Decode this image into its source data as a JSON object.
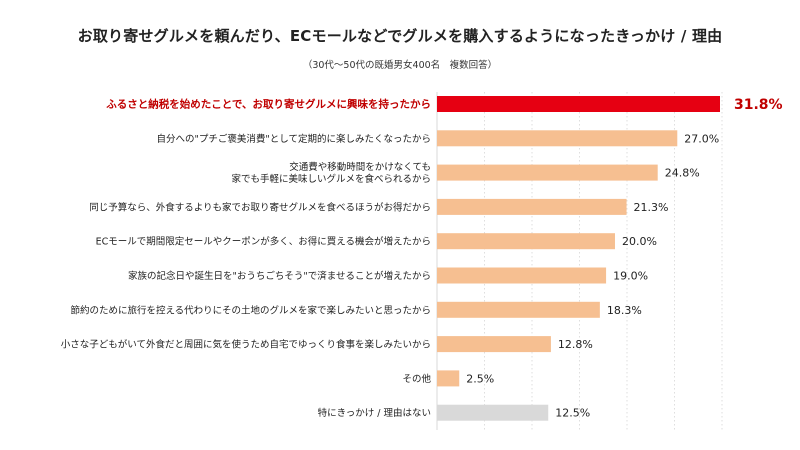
{
  "chart_data": {
    "type": "bar",
    "orientation": "horizontal",
    "title": "お取り寄せグルメを頼んだり、ECモールなどでグルメを購入するようになったきっかけ / 理由",
    "subtitle": "（30代〜50代の既婚男女400名　複数回答）",
    "unit": "%",
    "xlim": [
      0,
      31.8
    ],
    "grid": "vertical-dotted",
    "colors": {
      "highlight": "#e60012",
      "default": "#f6bf91",
      "muted": "#d9d9d9",
      "highlight_text": "#c00000"
    },
    "categories": [
      [
        "ふるさと納税を始めたことで、お取り寄せグルメに興味を持ったから"
      ],
      [
        "自分への\"プチご褒美消費\"として定期的に楽しみたくなったから"
      ],
      [
        "交通費や移動時間をかけなくても",
        "家でも手軽に美味しいグルメを食べられるから"
      ],
      [
        "同じ予算なら、外食するよりも家でお取り寄せグルメを食べるほうがお得だから"
      ],
      [
        "ECモールで期間限定セールやクーポンが多く、お得に買える機会が増えたから"
      ],
      [
        "家族の記念日や誕生日を\"おうちごちそう\"で済ませることが増えたから"
      ],
      [
        "節約のために旅行を控える代わりにその土地のグルメを家で楽しみたいと思ったから"
      ],
      [
        "小さな子どもがいて外食だと周囲に気を使うため自宅でゆっくり食事を楽しみたいから"
      ],
      [
        "その他"
      ],
      [
        "特にきっかけ / 理由はない"
      ]
    ],
    "values": [
      31.8,
      27.0,
      24.8,
      21.3,
      20.0,
      19.0,
      18.3,
      12.8,
      2.5,
      12.5
    ],
    "value_labels": [
      "31.8%",
      "27.0%",
      "24.8%",
      "21.3%",
      "20.0%",
      "19.0%",
      "18.3%",
      "12.8%",
      "2.5%",
      "12.5%"
    ],
    "styles": [
      "highlight",
      "default",
      "default",
      "default",
      "default",
      "default",
      "default",
      "default",
      "default",
      "muted"
    ]
  }
}
